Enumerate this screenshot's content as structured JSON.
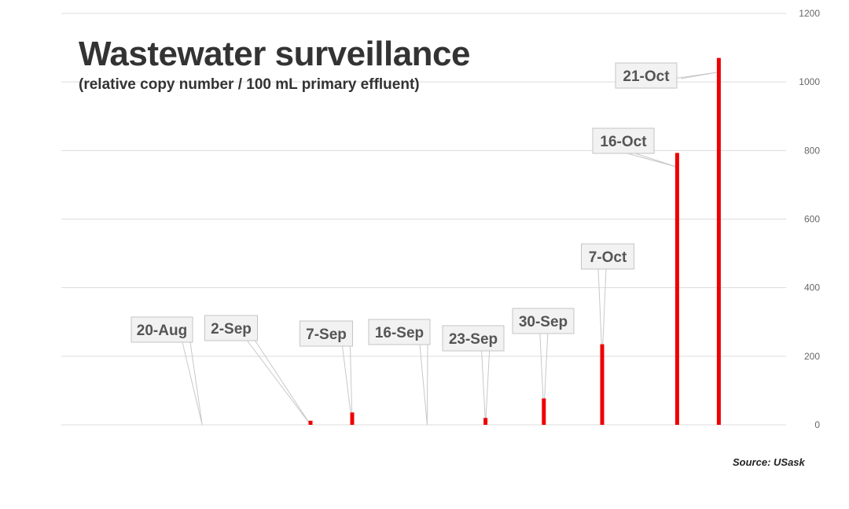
{
  "header": {
    "title": "Wastewater surveillance",
    "subtitle": "(relative copy number / 100 mL primary effluent)",
    "source": "Source:  USask"
  },
  "chart_data": {
    "type": "bar",
    "title": "Wastewater surveillance",
    "subtitle": "(relative copy number / 100 mL primary effluent)",
    "xlabel": "",
    "ylabel": "",
    "ylim": [
      0,
      1200
    ],
    "yticks": [
      0,
      200,
      400,
      600,
      800,
      1000,
      1200
    ],
    "y_axis_side": "right",
    "grid": true,
    "x_axis": "dates",
    "bar_color": "#ee0000",
    "points": [
      {
        "date": "20-Aug",
        "value": 0
      },
      {
        "date": "2-Sep",
        "value": 12
      },
      {
        "date": "7-Sep",
        "value": 36
      },
      {
        "date": "16-Sep",
        "value": 0
      },
      {
        "date": "23-Sep",
        "value": 20
      },
      {
        "date": "30-Sep",
        "value": 77
      },
      {
        "date": "7-Oct",
        "value": 235
      },
      {
        "date": "16-Oct",
        "value": 793
      },
      {
        "date": "21-Oct",
        "value": 1070
      }
    ]
  }
}
